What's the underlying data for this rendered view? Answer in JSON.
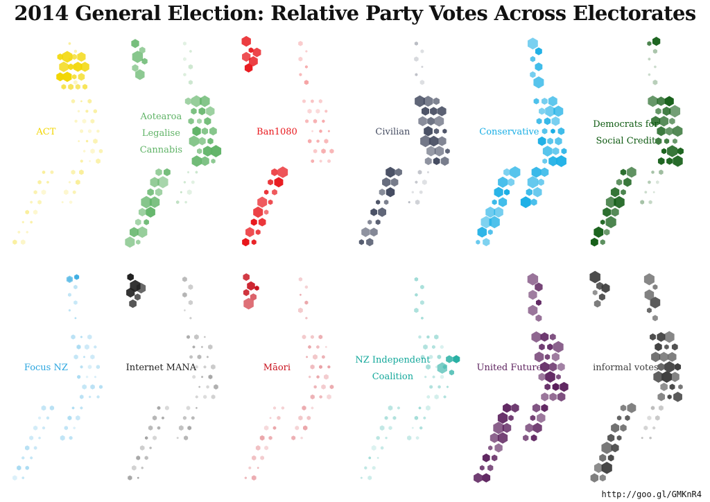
{
  "title": "2014 General Election: Relative Party Votes Across Electorates",
  "source": "http://goo.gl/GMKnR4",
  "chart_data": {
    "type": "hexbin-map",
    "title": "2014 General Election: Relative Party Votes Across Electorates",
    "panels": [
      {
        "party": "ACT",
        "label_lines": [
          "ACT"
        ],
        "color": "#f2d600",
        "strong": [
          "northA"
        ],
        "light": [
          "north",
          "central",
          "lower",
          "south"
        ],
        "seed": 3
      },
      {
        "party": "Aotearoa Legalise Cannabis",
        "label_lines": [
          "Aotearoa",
          "Legalise",
          "Cannabis"
        ],
        "color": "#5fb366",
        "strong": [
          "auckland",
          "central",
          "south"
        ],
        "light": [
          "north",
          "lower"
        ],
        "seed": 7
      },
      {
        "party": "Ban1080",
        "label_lines": [
          "Ban1080"
        ],
        "color": "#e8161b",
        "strong": [
          "south",
          "topleft"
        ],
        "light": [
          "north",
          "central"
        ],
        "seed": 11
      },
      {
        "party": "Civilian",
        "label_lines": [
          "Civilian"
        ],
        "color": "#444b60",
        "strong": [
          "south",
          "central"
        ],
        "light": [
          "north",
          "lower"
        ],
        "seed": 13
      },
      {
        "party": "Conservative",
        "label_lines": [
          "Conservative"
        ],
        "color": "#19aee5",
        "strong": [
          "north",
          "central",
          "lower",
          "south"
        ],
        "light": [],
        "seed": 17
      },
      {
        "party": "Democrats for Social Credit",
        "label_lines": [
          "Democrats for",
          "Social Credit"
        ],
        "color": "#0e5a11",
        "strong": [
          "topright",
          "south",
          "central"
        ],
        "light": [
          "north",
          "lower"
        ],
        "seed": 19
      },
      {
        "party": "Focus NZ",
        "label_lines": [
          "Focus NZ"
        ],
        "color": "#2aa5df",
        "strong": [
          "topright"
        ],
        "light": [
          "north",
          "central",
          "lower",
          "south"
        ],
        "seed": 23
      },
      {
        "party": "Internet MANA",
        "label_lines": [
          "Internet MANA"
        ],
        "color": "#1e1e1e",
        "strong": [
          "topleft"
        ],
        "light": [
          "north",
          "central",
          "lower",
          "south"
        ],
        "seed": 29
      },
      {
        "party": "Māori",
        "label_lines": [
          "Māori"
        ],
        "color": "#c8101c",
        "strong": [
          "topleft"
        ],
        "light": [
          "north",
          "central",
          "lower",
          "south"
        ],
        "seed": 31
      },
      {
        "party": "NZ Independent Coalition",
        "label_lines": [
          "NZ Independent",
          "Coalition"
        ],
        "color": "#14a89b",
        "strong": [
          "east"
        ],
        "light": [
          "north",
          "central",
          "lower",
          "south"
        ],
        "seed": 37
      },
      {
        "party": "United Future",
        "label_lines": [
          "United Future"
        ],
        "color": "#5a1f5c",
        "strong": [
          "north",
          "central",
          "lower",
          "south"
        ],
        "light": [],
        "seed": 41
      },
      {
        "party": "informal votes",
        "label_lines": [
          "informal votes"
        ],
        "color": "#3d3d3d",
        "strong": [
          "topleft",
          "north",
          "central",
          "south"
        ],
        "light": [
          "lower"
        ],
        "seed": 43
      }
    ]
  }
}
